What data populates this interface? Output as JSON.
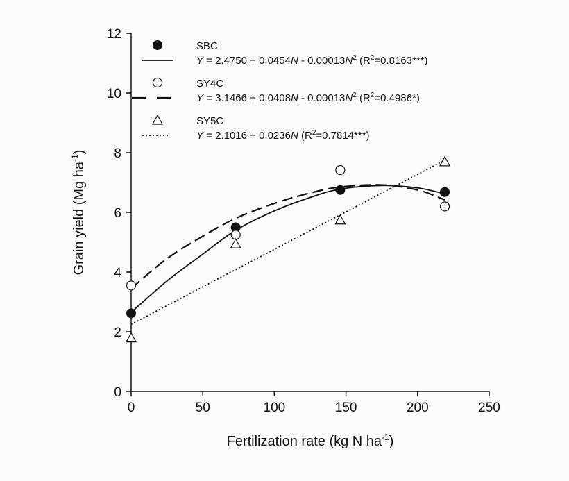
{
  "chart_data": {
    "type": "scatter",
    "xlabel": "Fertilization rate  (kg N ha",
    "xlabel_sup": "-1",
    "xlabel_end": ")",
    "ylabel": "Grain yield (Mg ha",
    "ylabel_sup": "-1",
    "ylabel_end": ")",
    "xlim": [
      0,
      250
    ],
    "ylim": [
      0,
      12
    ],
    "xticks": [
      "0",
      "50",
      "100",
      "150",
      "200",
      "250"
    ],
    "yticks": [
      "0",
      "2",
      "4",
      "6",
      "8",
      "10",
      "12"
    ],
    "grid": false,
    "legend_position": "top-left",
    "series": [
      {
        "name": "SBC",
        "marker": "filled-circle",
        "x": [
          0,
          73,
          146,
          219
        ],
        "y": [
          2.62,
          5.5,
          6.75,
          6.68
        ],
        "fit_style": "solid",
        "fit_label": [
          "Y",
          " = 2.4750 + 0.0454",
          "N",
          " - 0.00013",
          "N",
          "2",
          " (R",
          "2",
          "=0.8163***)"
        ],
        "fit_curve": {
          "x": [
            0,
            25,
            50,
            73,
            100,
            125,
            146,
            175,
            200,
            219
          ],
          "y": [
            2.65,
            3.7,
            4.6,
            5.4,
            6.05,
            6.5,
            6.78,
            6.9,
            6.82,
            6.62
          ]
        }
      },
      {
        "name": "SY4C",
        "marker": "open-circle",
        "x": [
          0,
          73,
          146,
          219
        ],
        "y": [
          3.55,
          5.25,
          7.42,
          6.2
        ],
        "fit_style": "dashed",
        "fit_label": [
          "Y",
          " = 3.1466 + 0.0408",
          "N",
          " - 0.00013",
          "N",
          "2",
          " (R",
          "2",
          "=0.4986*)"
        ],
        "fit_curve": {
          "x": [
            0,
            25,
            50,
            73,
            100,
            125,
            146,
            175,
            200,
            219
          ],
          "y": [
            3.45,
            4.45,
            5.2,
            5.8,
            6.3,
            6.65,
            6.85,
            6.92,
            6.75,
            6.42
          ]
        }
      },
      {
        "name": "SY5C",
        "marker": "open-triangle",
        "x": [
          0,
          73,
          146,
          219
        ],
        "y": [
          1.8,
          4.95,
          5.75,
          7.7
        ],
        "fit_style": "dotted",
        "fit_label": [
          "Y",
          " = 2.1016 + 0.0236",
          "N",
          " (R",
          "2",
          "=0.7814***)"
        ],
        "fit_curve": {
          "x": [
            0,
            219
          ],
          "y": [
            2.25,
            7.75
          ]
        }
      }
    ]
  }
}
